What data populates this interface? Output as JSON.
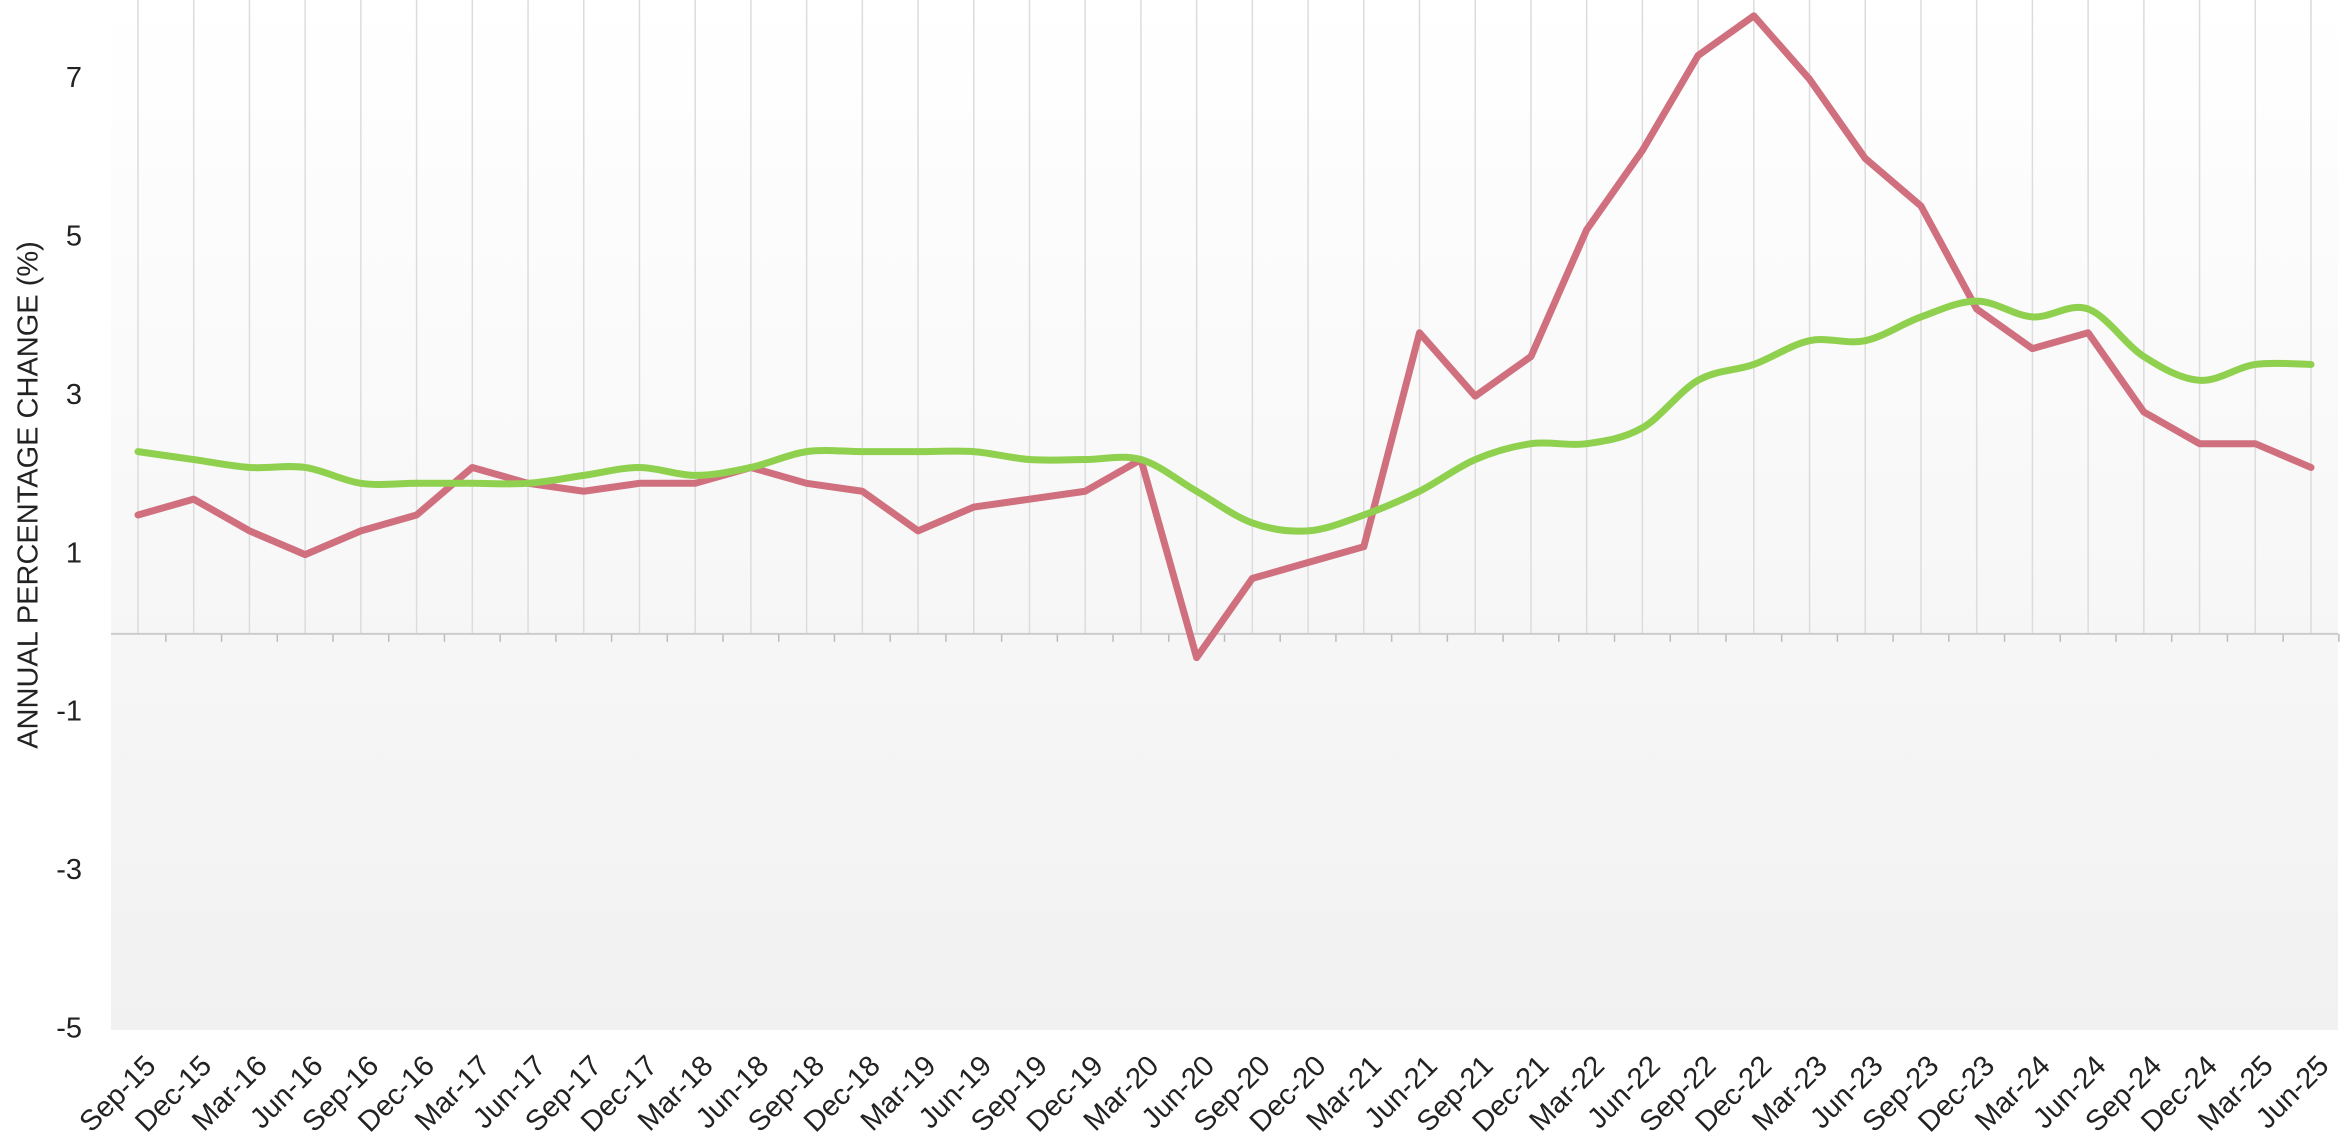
{
  "chart_data": {
    "type": "line",
    "y_label": "ANNUAL PERCENTAGE CHANGE (%)",
    "categories": [
      "Sep-15",
      "Dec-15",
      "Mar-16",
      "Jun-16",
      "Sep-16",
      "Dec-16",
      "Mar-17",
      "Jun-17",
      "Sep-17",
      "Dec-17",
      "Mar-18",
      "Jun-18",
      "Sep-18",
      "Dec-18",
      "Mar-19",
      "Jun-19",
      "Sep-19",
      "Dec-19",
      "Mar-20",
      "Jun-20",
      "Sep-20",
      "Dec-20",
      "Mar-21",
      "Jun-21",
      "Sep-21",
      "Dec-21",
      "Mar-22",
      "Jun-22",
      "Sep-22",
      "Dec-22",
      "Mar-23",
      "Jun-23",
      "Sep-23",
      "Dec-23",
      "Mar-24",
      "Jun-24",
      "Sep-24",
      "Dec-24",
      "Mar-25",
      "Jun-25"
    ],
    "series": [
      {
        "color": "#d0707f",
        "smooth": false,
        "values": [
          1.5,
          1.7,
          1.3,
          1.0,
          1.3,
          1.5,
          2.1,
          1.9,
          1.8,
          1.9,
          1.9,
          2.1,
          1.9,
          1.8,
          1.3,
          1.6,
          1.7,
          1.8,
          2.2,
          -0.3,
          0.7,
          0.9,
          1.1,
          3.8,
          3.0,
          3.5,
          5.1,
          6.1,
          7.3,
          7.8,
          7.0,
          6.0,
          5.4,
          4.1,
          3.6,
          3.8,
          2.8,
          2.4,
          2.4,
          2.1
        ]
      },
      {
        "color": "#8fd14f",
        "smooth": true,
        "values": [
          2.3,
          2.2,
          2.1,
          2.1,
          1.9,
          1.9,
          1.9,
          1.9,
          2.0,
          2.1,
          2.0,
          2.1,
          2.3,
          2.3,
          2.3,
          2.3,
          2.2,
          2.2,
          2.2,
          1.8,
          1.4,
          1.3,
          1.5,
          1.8,
          2.2,
          2.4,
          2.4,
          2.6,
          3.2,
          3.4,
          3.7,
          3.7,
          4.0,
          4.2,
          4.0,
          4.1,
          3.5,
          3.2,
          3.4,
          3.4
        ]
      }
    ],
    "ylim": [
      -5,
      8
    ],
    "yticks": [
      -5,
      -3,
      -1,
      1,
      3,
      5,
      7
    ],
    "grid": false
  }
}
